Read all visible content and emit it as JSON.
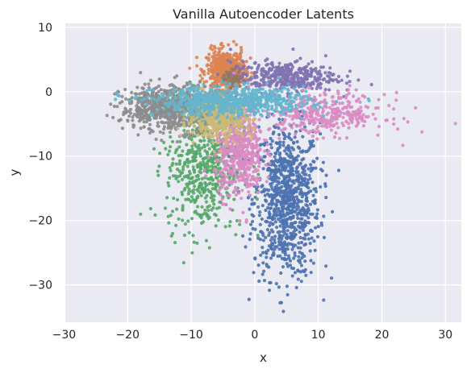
{
  "chart_data": {
    "type": "scatter",
    "title": "Vanilla Autoencoder Latents",
    "xlabel": "x",
    "ylabel": "y",
    "xlim": [
      -29.8,
      32.5
    ],
    "ylim": [
      -35.8,
      10.6
    ],
    "xticks": [
      -30,
      -20,
      -10,
      0,
      10,
      20,
      30
    ],
    "yticks": [
      10,
      0,
      -10,
      -20,
      -30
    ],
    "x_tick_labels": [
      "−30",
      "−20",
      "−10",
      "0",
      "10",
      "20",
      "30"
    ],
    "y_tick_labels": [
      "10",
      "0",
      "−10",
      "−20",
      "−30"
    ],
    "grid": true,
    "background": "#eaeaf2",
    "clusters": [
      {
        "color": "#4c72b0",
        "center": [
          5.0,
          -17.0
        ],
        "spread": [
          2.6,
          6.0
        ],
        "count": 900
      },
      {
        "color": "#dd8452",
        "center": [
          -4.6,
          3.4
        ],
        "spread": [
          1.5,
          1.5
        ],
        "count": 520
      },
      {
        "color": "#55a868",
        "center": [
          -8.0,
          -11.5
        ],
        "spread": [
          3.0,
          5.0
        ],
        "count": 560
      },
      {
        "color": "#c44e52",
        "center": [
          -2.5,
          -2.0
        ],
        "spread": [
          0.8,
          0.8
        ],
        "count": 14
      },
      {
        "color": "#8172b3",
        "center": [
          4.5,
          2.3
        ],
        "spread": [
          4.2,
          1.2
        ],
        "count": 380
      },
      {
        "color": "#937860",
        "center": [
          -3.5,
          2.0
        ],
        "spread": [
          0.7,
          0.7
        ],
        "count": 60
      },
      {
        "color": "#da8bc3",
        "center": [
          -2.5,
          -9.0
        ],
        "spread": [
          1.9,
          3.6
        ],
        "count": 560
      },
      {
        "color": "#da8bc3",
        "center": [
          11.0,
          -3.5
        ],
        "spread": [
          4.8,
          1.6
        ],
        "count": 360
      },
      {
        "color": "#8c8c8c",
        "center": [
          -13.0,
          -2.5
        ],
        "spread": [
          4.0,
          1.8
        ],
        "count": 720
      },
      {
        "color": "#ccb974",
        "center": [
          -5.5,
          -4.0
        ],
        "spread": [
          2.6,
          1.6
        ],
        "count": 420
      },
      {
        "color": "#64b5cd",
        "center": [
          -3.5,
          -1.5
        ],
        "spread": [
          6.0,
          1.1
        ],
        "count": 720
      }
    ]
  }
}
